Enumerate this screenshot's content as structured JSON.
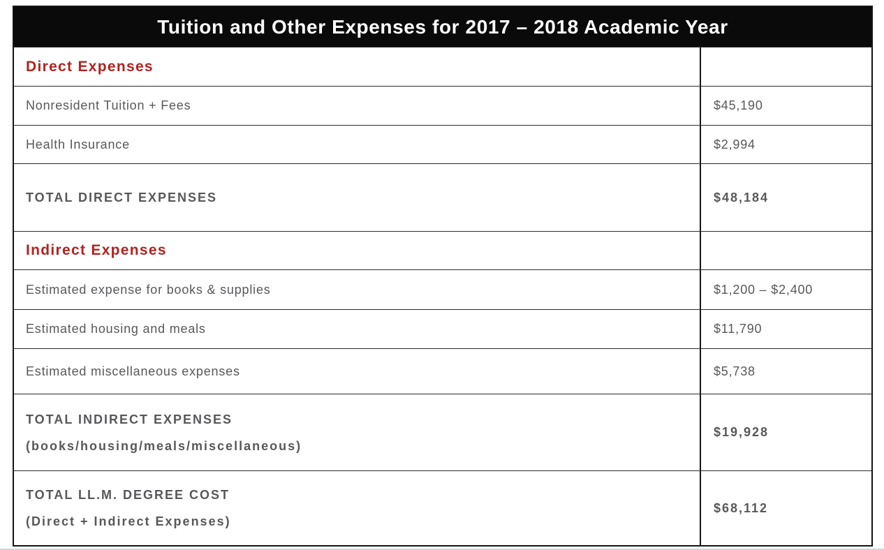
{
  "title": "Tuition and Other Expenses for 2017 – 2018 Academic Year",
  "colors": {
    "header_bg": "#0a0a0a",
    "header_text": "#ffffff",
    "section_red": "#b02320",
    "body_gray": "#58585b",
    "border": "#141414"
  },
  "table": {
    "rows": [
      {
        "type": "section",
        "label": "Direct Expenses",
        "amount": ""
      },
      {
        "type": "item",
        "label": "Nonresident Tuition + Fees",
        "amount": "$45,190"
      },
      {
        "type": "item",
        "label": "Health Insurance",
        "amount": "$2,994"
      },
      {
        "type": "total",
        "label": "TOTAL DIRECT EXPENSES",
        "amount": "$48,184"
      },
      {
        "type": "section",
        "label": "Indirect Expenses",
        "amount": ""
      },
      {
        "type": "item",
        "label": "Estimated expense for books & supplies",
        "amount": "$1,200 – $2,400"
      },
      {
        "type": "item",
        "label": "Estimated housing and meals",
        "amount": "$11,790"
      },
      {
        "type": "item",
        "label": "Estimated miscellaneous expenses",
        "amount": "$5,738"
      },
      {
        "type": "total",
        "label": "TOTAL INDIRECT EXPENSES",
        "sublabel": "(books/housing/meals/miscellaneous)",
        "amount": "$19,928"
      },
      {
        "type": "total",
        "label": "TOTAL LL.M. DEGREE COST",
        "sublabel": "(Direct + Indirect Expenses)",
        "amount": "$68,112"
      }
    ]
  }
}
